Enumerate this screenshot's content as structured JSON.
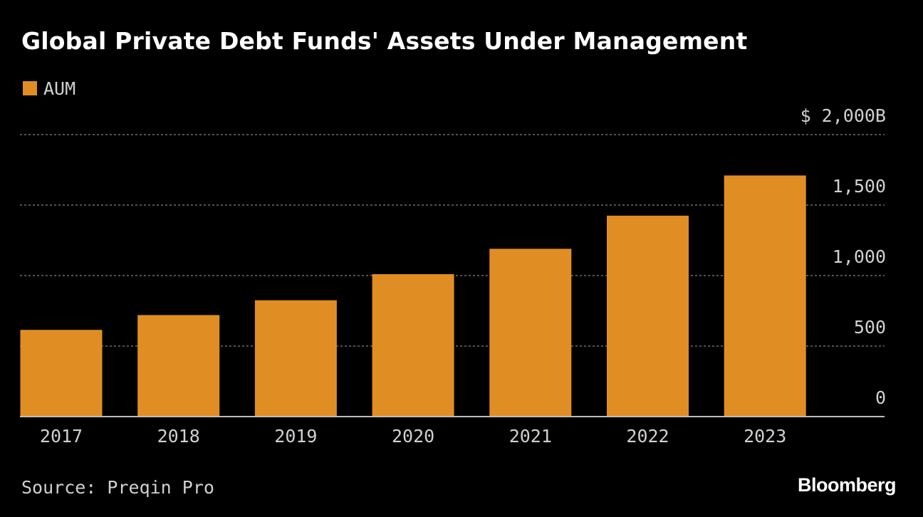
{
  "colors": {
    "background": "#000000",
    "bar": "#e08e24",
    "gridline": "#6e6e6e",
    "baseline": "#bdbdbd",
    "text": "#ffffff",
    "muted_text": "#d0d0d0"
  },
  "footer": {
    "source": "Source: Preqin Pro",
    "brand": "Bloomberg"
  },
  "chart_data": {
    "type": "bar",
    "title": "Global Private Debt Funds' Assets Under Management",
    "xlabel": "",
    "ylabel": "",
    "categories": [
      "2017",
      "2018",
      "2019",
      "2020",
      "2021",
      "2022",
      "2023"
    ],
    "series": [
      {
        "name": "AUM",
        "color": "#e08e24",
        "values": [
          615,
          720,
          825,
          1010,
          1190,
          1425,
          1710
        ]
      }
    ],
    "ylim": [
      0,
      2000
    ],
    "yticks": [
      0,
      500,
      1000,
      1500,
      2000
    ],
    "ytick_labels": [
      "0",
      "500",
      "1,000",
      "1,500",
      "$ 2,000B"
    ],
    "grid": true,
    "legend_position": "top-left",
    "y_axis_side": "right"
  }
}
